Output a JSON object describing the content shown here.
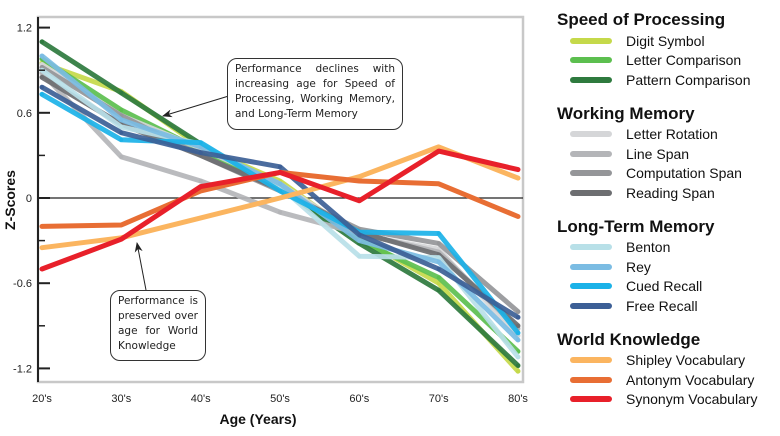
{
  "chart_data": {
    "type": "line",
    "title": "",
    "xlabel": "Age (Years)",
    "ylabel": "Z-Scores",
    "categories": [
      "20's",
      "30's",
      "40's",
      "50's",
      "60's",
      "70's",
      "80's"
    ],
    "ylim": [
      -1.3,
      1.25
    ],
    "yticks": [
      1.2,
      0.6,
      0,
      -0.6,
      -1.2
    ],
    "ytick_labels": [
      "1.2",
      "0.6",
      "0",
      "-0.6",
      "-1.2"
    ],
    "minor_yticks": [
      0.9,
      0.3,
      -0.3,
      -0.9
    ],
    "zero_line": true,
    "grid": false,
    "legend_position": "right",
    "groups": [
      {
        "name": "Speed of Processing",
        "series": [
          {
            "name": "Digit Symbol",
            "color": "#c5d94a",
            "values": [
              0.95,
              0.75,
              0.36,
              0.12,
              -0.28,
              -0.6,
              -1.22
            ]
          },
          {
            "name": "Letter Comparison",
            "color": "#5cbf4f",
            "values": [
              0.98,
              0.62,
              0.34,
              0.08,
              -0.3,
              -0.56,
              -1.08
            ]
          },
          {
            "name": "Pattern Comparison",
            "color": "#2e7a3e",
            "values": [
              1.1,
              0.74,
              0.38,
              0.07,
              -0.32,
              -0.65,
              -1.18
            ]
          }
        ]
      },
      {
        "name": "Working Memory",
        "series": [
          {
            "name": "Letter Rotation",
            "color": "#d5d6d8",
            "values": [
              0.94,
              0.58,
              0.35,
              0.1,
              -0.26,
              -0.36,
              -0.97
            ]
          },
          {
            "name": "Line Span",
            "color": "#b4b5b8",
            "values": [
              0.88,
              0.29,
              0.12,
              -0.1,
              -0.25,
              -0.38,
              -0.92
            ]
          },
          {
            "name": "Computation Span",
            "color": "#959699",
            "values": [
              0.92,
              0.58,
              0.3,
              0.05,
              -0.22,
              -0.32,
              -0.8
            ]
          },
          {
            "name": "Reading Span",
            "color": "#6d6e71",
            "values": [
              0.85,
              0.52,
              0.3,
              0.06,
              -0.24,
              -0.4,
              -0.9
            ]
          }
        ]
      },
      {
        "name": "Long-Term Memory",
        "series": [
          {
            "name": "Benton",
            "color": "#b8e0e8",
            "values": [
              0.9,
              0.5,
              0.38,
              0.08,
              -0.41,
              -0.42,
              -1.12
            ]
          },
          {
            "name": "Rey",
            "color": "#7bbce3",
            "values": [
              1.0,
              0.55,
              0.36,
              0.1,
              -0.3,
              -0.45,
              -1.0
            ]
          },
          {
            "name": "Cued Recall",
            "color": "#1bb2e8",
            "values": [
              0.73,
              0.41,
              0.39,
              0.05,
              -0.24,
              -0.25,
              -0.95
            ]
          },
          {
            "name": "Free Recall",
            "color": "#3c5f96",
            "values": [
              0.78,
              0.46,
              0.32,
              0.22,
              -0.26,
              -0.5,
              -0.84
            ]
          }
        ]
      },
      {
        "name": "World Knowledge",
        "series": [
          {
            "name": "Shipley Vocabulary",
            "color": "#fbb560",
            "values": [
              -0.35,
              -0.28,
              -0.14,
              0.0,
              0.15,
              0.36,
              0.14
            ]
          },
          {
            "name": "Antonym Vocabulary",
            "color": "#e86e34",
            "values": [
              -0.2,
              -0.19,
              0.05,
              0.18,
              0.12,
              0.1,
              -0.13
            ]
          },
          {
            "name": "Synonym Vocabulary",
            "color": "#e8202a",
            "values": [
              -0.5,
              -0.29,
              0.08,
              0.18,
              -0.02,
              0.33,
              0.2
            ]
          }
        ]
      }
    ],
    "annotations": [
      {
        "text": "Performance declines with increasing age for Speed of Processing, Working Memory, and Long-Term Memory",
        "points_to": "declining lines near 30's"
      },
      {
        "text": "Performance is preserved over age for World Knowledge",
        "points_to": "World Knowledge lines near 30's"
      }
    ]
  }
}
